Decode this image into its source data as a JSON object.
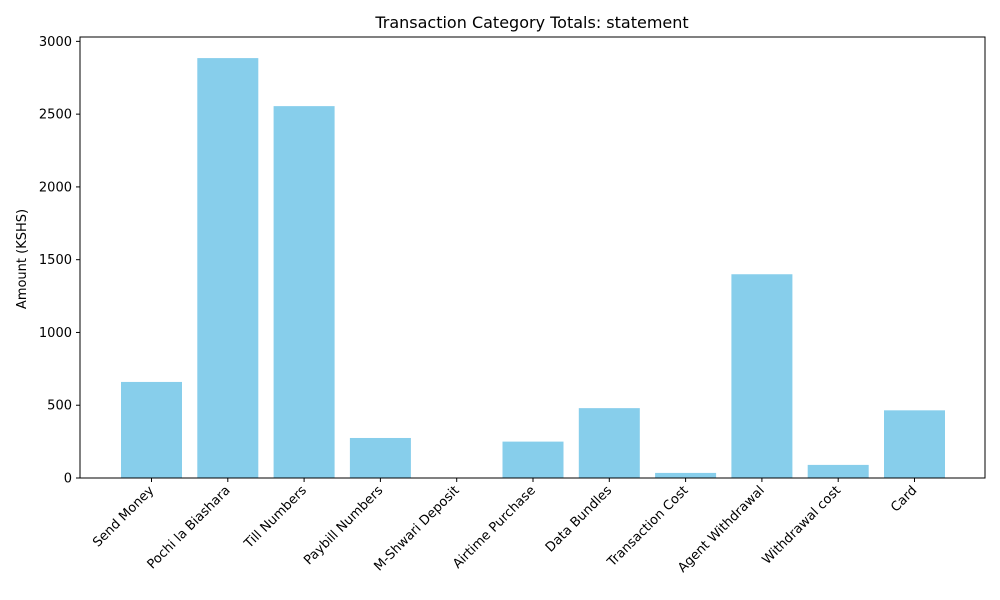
{
  "chart_data": {
    "type": "bar",
    "title": "Transaction Category Totals: statement",
    "xlabel": "",
    "ylabel": "Amount (KSHS)",
    "ylim": [
      0,
      3030
    ],
    "yticks": [
      0,
      500,
      1000,
      1500,
      2000,
      2500,
      3000
    ],
    "categories": [
      "Send Money",
      "Pochi la Biashara",
      "Till Numbers",
      "Paybill Numbers",
      "M-Shwari Deposit",
      "Airtime Purchase",
      "Data Bundles",
      "Transaction Cost",
      "Agent Withdrawal",
      "Withdrawal cost",
      "Card"
    ],
    "values": [
      660,
      2885,
      2555,
      275,
      0,
      250,
      480,
      35,
      1400,
      90,
      465
    ],
    "bar_color": "#87ceeb",
    "grid": false,
    "legend": "none"
  }
}
